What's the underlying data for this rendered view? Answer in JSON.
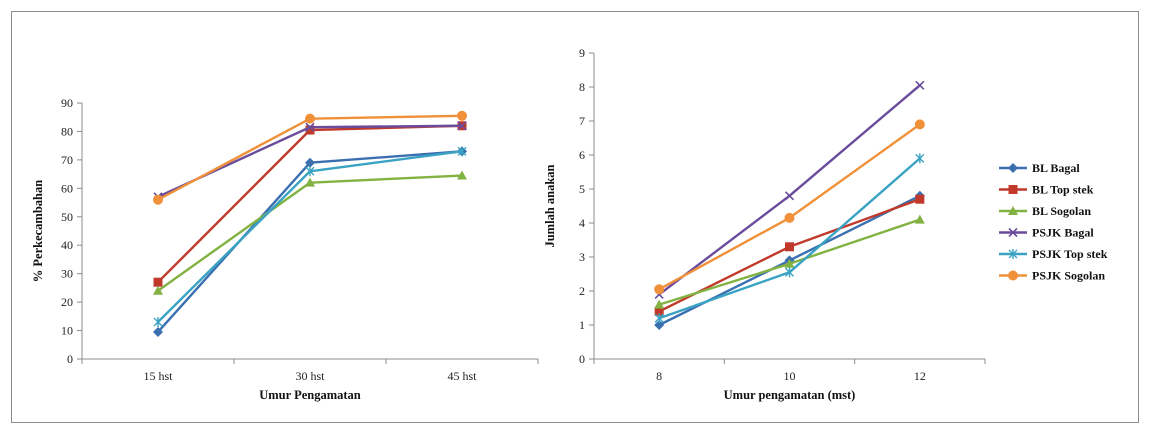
{
  "series_styles": [
    {
      "name": "BL Bagal",
      "color": "#3a6fb0",
      "marker": "diamond"
    },
    {
      "name": "BL Top stek",
      "color": "#c0392b",
      "marker": "square"
    },
    {
      "name": "BL Sogolan",
      "color": "#82b342",
      "marker": "triangle"
    },
    {
      "name": "PSJK Bagal",
      "color": "#6a4c9c",
      "marker": "x"
    },
    {
      "name": "PSJK Top stek",
      "color": "#3aa3c3",
      "marker": "star"
    },
    {
      "name": "PSJK Sogolan",
      "color": "#f0913a",
      "marker": "circle"
    }
  ],
  "chart_data": [
    {
      "type": "line",
      "categories": [
        "15 hst",
        "30 hst",
        "45 hst"
      ],
      "xlabel": "Umur Pengamatan",
      "ylabel": "% Perkecambahan",
      "ylim": [
        0,
        90
      ],
      "yticks": [
        0,
        10,
        20,
        30,
        40,
        50,
        60,
        70,
        80,
        90
      ],
      "grid": false,
      "series": [
        {
          "name": "BL Bagal",
          "values": [
            9.5,
            69,
            73
          ]
        },
        {
          "name": "BL Top stek",
          "values": [
            27,
            80.5,
            82
          ]
        },
        {
          "name": "BL Sogolan",
          "values": [
            24,
            62,
            64.5
          ]
        },
        {
          "name": "PSJK Bagal",
          "values": [
            57,
            81.5,
            82
          ]
        },
        {
          "name": "PSJK Top stek",
          "values": [
            13,
            66,
            73
          ]
        },
        {
          "name": "PSJK Sogolan",
          "values": [
            56,
            84.5,
            85.5
          ]
        }
      ]
    },
    {
      "type": "line",
      "categories": [
        "8",
        "10",
        "12"
      ],
      "xlabel": "Umur pengamatan (mst)",
      "ylabel": "Jumlah anakan",
      "ylim": [
        0,
        9
      ],
      "yticks": [
        0,
        1,
        2,
        3,
        4,
        5,
        6,
        7,
        8,
        9
      ],
      "grid": false,
      "legend": "right",
      "series": [
        {
          "name": "BL Bagal",
          "values": [
            1.0,
            2.9,
            4.8
          ]
        },
        {
          "name": "BL Top stek",
          "values": [
            1.4,
            3.3,
            4.7
          ]
        },
        {
          "name": "BL Sogolan",
          "values": [
            1.6,
            2.8,
            4.1
          ]
        },
        {
          "name": "PSJK Bagal",
          "values": [
            1.9,
            4.8,
            8.05
          ]
        },
        {
          "name": "PSJK Top stek",
          "values": [
            1.2,
            2.55,
            5.9
          ]
        },
        {
          "name": "PSJK Sogolan",
          "values": [
            2.05,
            4.15,
            6.9
          ]
        }
      ]
    }
  ]
}
